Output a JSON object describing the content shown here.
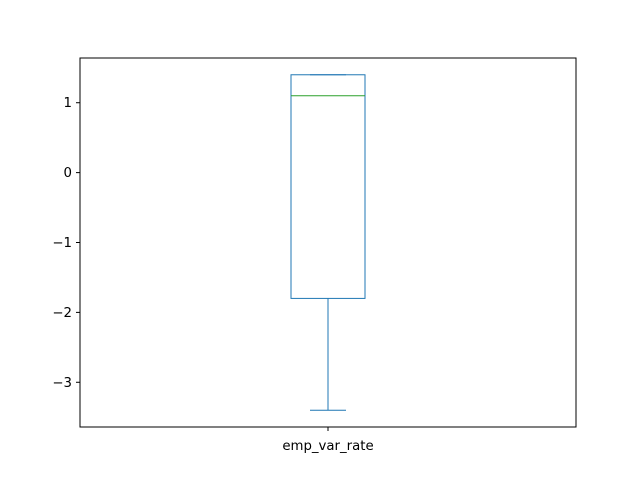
{
  "chart_data": {
    "type": "box",
    "title": "",
    "xlabel": "",
    "ylabel": "",
    "categories": [
      "emp_var_rate"
    ],
    "boxes": [
      {
        "name": "emp_var_rate",
        "whisker_low": -3.4,
        "q1": -1.8,
        "median": 1.1,
        "q3": 1.4,
        "whisker_high": 1.4
      }
    ],
    "ylim": [
      -3.64,
      1.64
    ],
    "yticks": [
      1,
      0,
      -1,
      -2,
      -3
    ],
    "ytick_labels": [
      "1",
      "0",
      "−1",
      "−2",
      "−3"
    ],
    "grid": false,
    "colors": {
      "box": "#1f77b4",
      "median": "#2ca02c",
      "axes": "#000000"
    }
  }
}
